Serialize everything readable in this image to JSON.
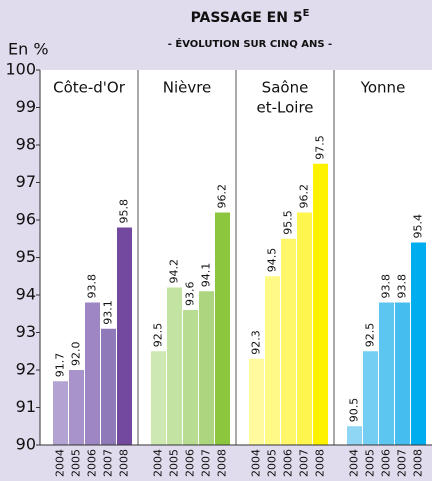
{
  "chart_data": {
    "type": "bar",
    "title": "PASSAGE EN 5",
    "title_superscript": "E",
    "subtitle": "- ÉVOLUTION SUR CINQ ANS -",
    "ylabel": "En %",
    "categories": [
      "2004",
      "2005",
      "2006",
      "2007",
      "2008"
    ],
    "series": [
      {
        "name": [
          "Côte-d'Or"
        ],
        "colors": [
          "#b3a3d3",
          "#a893cb",
          "#9e86c4",
          "#9079b9",
          "#7349a0"
        ],
        "values": [
          91.7,
          92.0,
          93.8,
          93.1,
          95.8
        ],
        "value_labels": [
          "91.7",
          "92.0",
          "93.8",
          "93.1",
          "95.8"
        ]
      },
      {
        "name": [
          "Nièvre"
        ],
        "colors": [
          "#cde8b0",
          "#c3e3a2",
          "#b8dd92",
          "#abd67f",
          "#8cc63f"
        ],
        "values": [
          92.5,
          94.2,
          93.6,
          94.1,
          96.2
        ],
        "value_labels": [
          "92.5",
          "94.2",
          "93.6",
          "94.1",
          "96.2"
        ]
      },
      {
        "name": [
          "Saône",
          "et-Loire"
        ],
        "colors": [
          "#fffa9e",
          "#fff985",
          "#fff76a",
          "#fff54f",
          "#fff200"
        ],
        "values": [
          92.3,
          94.5,
          95.5,
          96.2,
          97.5
        ],
        "value_labels": [
          "92.3",
          "94.5",
          "95.5",
          "96.2",
          "97.5"
        ]
      },
      {
        "name": [
          "Yonne"
        ],
        "colors": [
          "#8fd6f4",
          "#74cdf2",
          "#5cc5f0",
          "#45bdef",
          "#00aeef"
        ],
        "values": [
          90.5,
          92.5,
          93.8,
          93.8,
          95.4
        ],
        "value_labels": [
          "90.5",
          "92.5",
          "93.8",
          "93.8",
          "95.4"
        ]
      }
    ],
    "ylim": [
      90,
      100
    ],
    "yticks": [
      90,
      91,
      92,
      93,
      94,
      95,
      96,
      97,
      98,
      99,
      100
    ]
  }
}
